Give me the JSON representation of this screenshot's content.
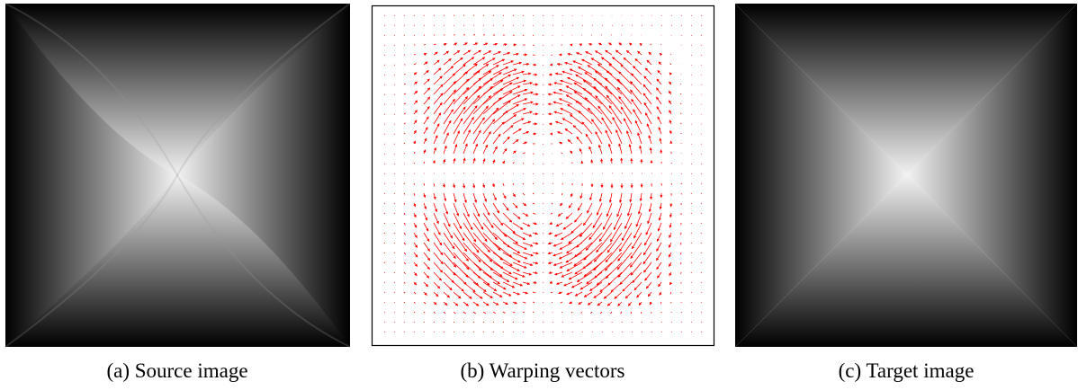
{
  "panels": [
    {
      "caption": "(a) Source image"
    },
    {
      "caption": "(b) Warping vectors"
    },
    {
      "caption": "(c) Target image"
    }
  ]
}
